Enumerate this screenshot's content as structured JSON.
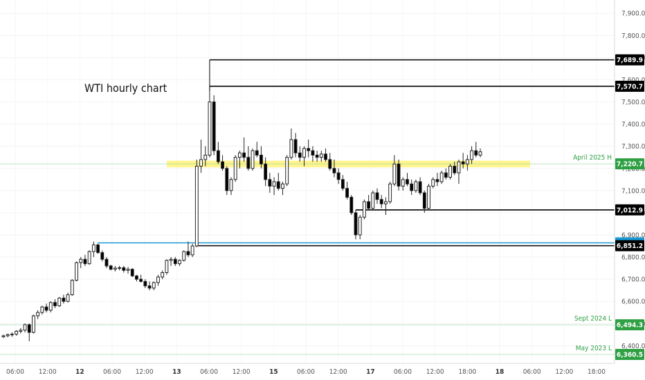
{
  "chart_data": {
    "type": "candlestick",
    "title": "WTI hourly chart",
    "ylim": [
      6320,
      7960
    ],
    "y_ticks": [
      "7,900.0",
      "7,800.0",
      "7,700.0",
      "7,600.0",
      "7,500.0",
      "7,400.0",
      "7,300.0",
      "7,200.0",
      "7,100.0",
      "7,000.0",
      "6,900.0",
      "6,800.0",
      "6,700.0",
      "6,600.0",
      "6,500.0",
      "6,400.0"
    ],
    "x_ticks": [
      {
        "label": "06:00",
        "bold": false
      },
      {
        "label": "12:00",
        "bold": false
      },
      {
        "label": "12",
        "bold": true
      },
      {
        "label": "06:00",
        "bold": false
      },
      {
        "label": "12:00",
        "bold": false
      },
      {
        "label": "13",
        "bold": true
      },
      {
        "label": "06:00",
        "bold": false
      },
      {
        "label": "12:00",
        "bold": false
      },
      {
        "label": "15",
        "bold": true
      },
      {
        "label": "06:00",
        "bold": false
      },
      {
        "label": "12:00",
        "bold": false
      },
      {
        "label": "17",
        "bold": true
      },
      {
        "label": "06:00",
        "bold": false
      },
      {
        "label": "12:00",
        "bold": false
      },
      {
        "label": "18:00",
        "bold": false
      },
      {
        "label": "18",
        "bold": true
      },
      {
        "label": "06:00",
        "bold": false
      },
      {
        "label": "12:00",
        "bold": false
      },
      {
        "label": "18:00",
        "bold": false
      }
    ],
    "levels": [
      {
        "value": 7689.9,
        "label": "7,689.9",
        "color": "#000000",
        "tag": "#000000",
        "style": "solid-thick"
      },
      {
        "value": 7570.7,
        "label": "7,570.7",
        "color": "#000000",
        "tag": "#000000",
        "style": "solid-thick"
      },
      {
        "value": 7220.7,
        "label": "7,220.7",
        "color": "#2ea043",
        "tag": "#2ea043",
        "style": "thin",
        "note": "April 2025 H"
      },
      {
        "value": 7012.9,
        "label": "7,012.9",
        "color": "#000000",
        "tag": "#000000",
        "style": "solid-thick"
      },
      {
        "value": 6864.1,
        "label": "6,864.1",
        "color": "#1b9ad6",
        "tag": "#1b9ad6",
        "style": "solid-thick"
      },
      {
        "value": 6851.2,
        "label": "6,851.2",
        "color": "#000000",
        "tag": "#000000",
        "style": "solid-thick"
      },
      {
        "value": 6494.3,
        "label": "6,494.3",
        "color": "#2ea043",
        "tag": "#2ea043",
        "style": "thin",
        "note": "Sept 2024 L"
      },
      {
        "value": 6360.5,
        "label": "6,360.5",
        "color": "#2ea043",
        "tag": "#2ea043",
        "style": "thin",
        "note": "May 2023 L"
      }
    ],
    "zone": {
      "low": 7205,
      "high": 7235,
      "color": "#fff27a"
    },
    "candles": [
      [
        6440,
        6450,
        6435,
        6445
      ],
      [
        6445,
        6455,
        6438,
        6450
      ],
      [
        6450,
        6460,
        6440,
        6452
      ],
      [
        6452,
        6470,
        6445,
        6465
      ],
      [
        6465,
        6480,
        6455,
        6470
      ],
      [
        6470,
        6500,
        6460,
        6495
      ],
      [
        6495,
        6500,
        6420,
        6460
      ],
      [
        6460,
        6540,
        6455,
        6535
      ],
      [
        6535,
        6560,
        6520,
        6550
      ],
      [
        6550,
        6580,
        6540,
        6575
      ],
      [
        6575,
        6590,
        6550,
        6560
      ],
      [
        6560,
        6600,
        6550,
        6595
      ],
      [
        6595,
        6610,
        6570,
        6580
      ],
      [
        6580,
        6620,
        6575,
        6615
      ],
      [
        6615,
        6630,
        6590,
        6600
      ],
      [
        6600,
        6640,
        6595,
        6630
      ],
      [
        6630,
        6700,
        6625,
        6695
      ],
      [
        6695,
        6780,
        6690,
        6775
      ],
      [
        6775,
        6800,
        6750,
        6790
      ],
      [
        6790,
        6810,
        6760,
        6770
      ],
      [
        6770,
        6830,
        6765,
        6825
      ],
      [
        6825,
        6870,
        6800,
        6855
      ],
      [
        6855,
        6860,
        6815,
        6820
      ],
      [
        6820,
        6830,
        6780,
        6790
      ],
      [
        6790,
        6800,
        6750,
        6760
      ],
      [
        6760,
        6765,
        6740,
        6745
      ],
      [
        6745,
        6760,
        6735,
        6750
      ],
      [
        6750,
        6760,
        6740,
        6752
      ],
      [
        6752,
        6760,
        6730,
        6740
      ],
      [
        6740,
        6755,
        6725,
        6745
      ],
      [
        6745,
        6750,
        6710,
        6715
      ],
      [
        6715,
        6720,
        6690,
        6700
      ],
      [
        6700,
        6720,
        6685,
        6690
      ],
      [
        6690,
        6700,
        6660,
        6670
      ],
      [
        6670,
        6690,
        6650,
        6660
      ],
      [
        6660,
        6690,
        6650,
        6685
      ],
      [
        6685,
        6720,
        6670,
        6710
      ],
      [
        6710,
        6740,
        6700,
        6730
      ],
      [
        6730,
        6790,
        6720,
        6785
      ],
      [
        6785,
        6800,
        6760,
        6790
      ],
      [
        6790,
        6800,
        6760,
        6770
      ],
      [
        6770,
        6790,
        6760,
        6785
      ],
      [
        6785,
        6830,
        6780,
        6825
      ],
      [
        6825,
        6870,
        6800,
        6810
      ],
      [
        6810,
        6860,
        6800,
        6850
      ],
      [
        6850,
        7240,
        6845,
        7210
      ],
      [
        7210,
        7330,
        7180,
        7240
      ],
      [
        7240,
        7300,
        7210,
        7260
      ],
      [
        7260,
        7550,
        7250,
        7500
      ],
      [
        7500,
        7530,
        7260,
        7280
      ],
      [
        7280,
        7320,
        7220,
        7230
      ],
      [
        7230,
        7260,
        7190,
        7200
      ],
      [
        7200,
        7210,
        7080,
        7100
      ],
      [
        7100,
        7160,
        7080,
        7150
      ],
      [
        7150,
        7260,
        7140,
        7250
      ],
      [
        7250,
        7280,
        7200,
        7270
      ],
      [
        7270,
        7340,
        7230,
        7250
      ],
      [
        7250,
        7300,
        7190,
        7200
      ],
      [
        7200,
        7290,
        7190,
        7280
      ],
      [
        7280,
        7320,
        7250,
        7260
      ],
      [
        7260,
        7300,
        7200,
        7220
      ],
      [
        7220,
        7250,
        7120,
        7150
      ],
      [
        7150,
        7180,
        7090,
        7120
      ],
      [
        7120,
        7160,
        7080,
        7140
      ],
      [
        7140,
        7180,
        7100,
        7110
      ],
      [
        7110,
        7140,
        7080,
        7130
      ],
      [
        7130,
        7260,
        7120,
        7250
      ],
      [
        7250,
        7380,
        7240,
        7330
      ],
      [
        7330,
        7360,
        7250,
        7270
      ],
      [
        7270,
        7300,
        7230,
        7250
      ],
      [
        7250,
        7300,
        7210,
        7290
      ],
      [
        7290,
        7330,
        7250,
        7280
      ],
      [
        7280,
        7300,
        7230,
        7260
      ],
      [
        7260,
        7280,
        7230,
        7250
      ],
      [
        7250,
        7280,
        7230,
        7265
      ],
      [
        7265,
        7290,
        7230,
        7240
      ],
      [
        7240,
        7270,
        7190,
        7200
      ],
      [
        7200,
        7240,
        7160,
        7180
      ],
      [
        7180,
        7200,
        7130,
        7150
      ],
      [
        7150,
        7170,
        7100,
        7110
      ],
      [
        7110,
        7140,
        7060,
        7070
      ],
      [
        7070,
        7080,
        6990,
        7000
      ],
      [
        7000,
        7010,
        6880,
        6900
      ],
      [
        6900,
        6990,
        6880,
        6980
      ],
      [
        6980,
        7060,
        6970,
        7050
      ],
      [
        7050,
        7080,
        7010,
        7020
      ],
      [
        7020,
        7100,
        7010,
        7090
      ],
      [
        7090,
        7110,
        7040,
        7060
      ],
      [
        7060,
        7080,
        7020,
        7040
      ],
      [
        7040,
        7070,
        6990,
        7050
      ],
      [
        7050,
        7140,
        7040,
        7130
      ],
      [
        7130,
        7260,
        7120,
        7220
      ],
      [
        7220,
        7240,
        7100,
        7120
      ],
      [
        7120,
        7160,
        7100,
        7150
      ],
      [
        7150,
        7180,
        7120,
        7130
      ],
      [
        7130,
        7150,
        7080,
        7100
      ],
      [
        7100,
        7150,
        7090,
        7140
      ],
      [
        7140,
        7160,
        7080,
        7090
      ],
      [
        7090,
        7100,
        7000,
        7020
      ],
      [
        7020,
        7130,
        7010,
        7120
      ],
      [
        7120,
        7160,
        7110,
        7150
      ],
      [
        7150,
        7180,
        7120,
        7140
      ],
      [
        7140,
        7190,
        7130,
        7180
      ],
      [
        7180,
        7200,
        7150,
        7160
      ],
      [
        7160,
        7220,
        7150,
        7210
      ],
      [
        7210,
        7230,
        7170,
        7180
      ],
      [
        7180,
        7240,
        7130,
        7230
      ],
      [
        7230,
        7270,
        7200,
        7220
      ],
      [
        7220,
        7260,
        7190,
        7240
      ],
      [
        7240,
        7300,
        7220,
        7280
      ],
      [
        7280,
        7320,
        7250,
        7260
      ],
      [
        7260,
        7290,
        7250,
        7275
      ]
    ]
  }
}
